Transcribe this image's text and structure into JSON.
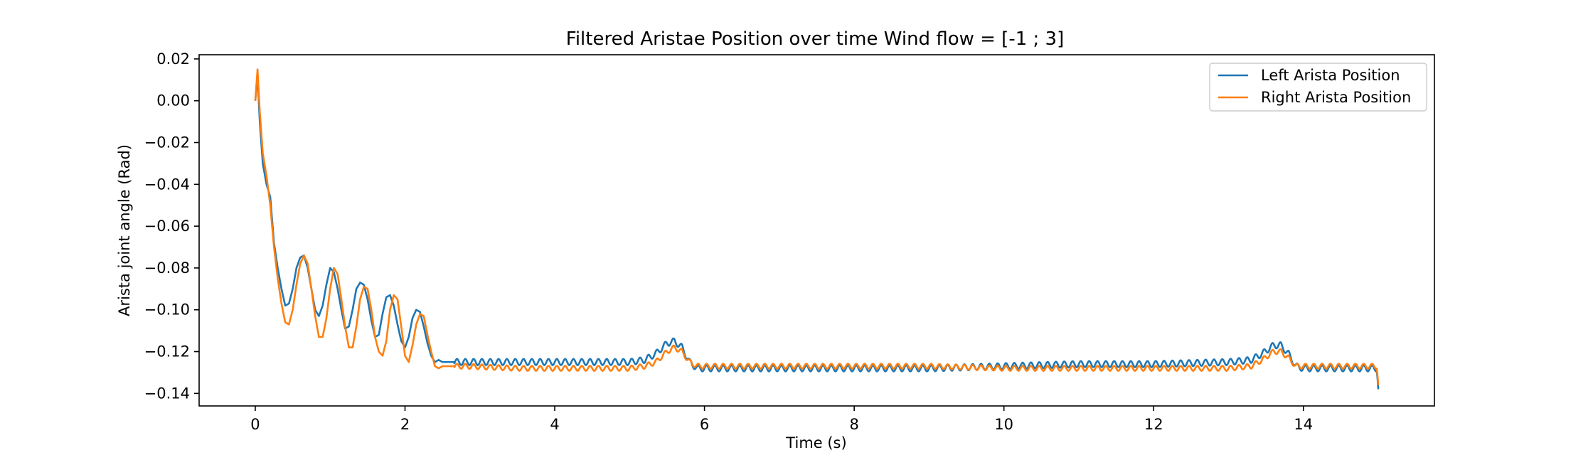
{
  "chart_data": {
    "type": "line",
    "title": "Filtered Aristae Position over time Wind flow = [-1 ; 3]",
    "xlabel": "Time (s)",
    "ylabel": "Arista joint angle (Rad)",
    "xlim": [
      -0.75,
      15.75
    ],
    "ylim": [
      -0.146,
      0.022
    ],
    "xticks": [
      0,
      2,
      4,
      6,
      8,
      10,
      12,
      14
    ],
    "xtick_labels": [
      "0",
      "2",
      "4",
      "6",
      "8",
      "10",
      "12",
      "14"
    ],
    "yticks": [
      0.02,
      0.0,
      -0.02,
      -0.04,
      -0.06,
      -0.08,
      -0.1,
      -0.12,
      -0.14
    ],
    "ytick_labels": [
      "0.02",
      "0.00",
      "−0.02",
      "−0.04",
      "−0.06",
      "−0.08",
      "−0.10",
      "−0.12",
      "−0.14"
    ],
    "grid": false,
    "legend_position": "top-right",
    "series": [
      {
        "name": "Left Arista Position",
        "color": "#1f77b4",
        "oscillation": {
          "start": 2.65,
          "end": 15.0,
          "frequency_hz": 9,
          "amplitude": 0.0015
        },
        "x": [
          0,
          0.03,
          0.06,
          0.1,
          0.15,
          0.2,
          0.25,
          0.3,
          0.35,
          0.4,
          0.45,
          0.5,
          0.55,
          0.6,
          0.65,
          0.7,
          0.75,
          0.8,
          0.85,
          0.9,
          0.95,
          1.0,
          1.05,
          1.1,
          1.15,
          1.2,
          1.25,
          1.3,
          1.35,
          1.4,
          1.45,
          1.5,
          1.55,
          1.6,
          1.65,
          1.7,
          1.75,
          1.8,
          1.85,
          1.9,
          1.95,
          2.0,
          2.05,
          2.1,
          2.15,
          2.2,
          2.25,
          2.3,
          2.35,
          2.4,
          2.45,
          2.5,
          2.55,
          2.6,
          2.65,
          2.7,
          2.8,
          3.5,
          4.5,
          5.0,
          5.2,
          5.35,
          5.5,
          5.6,
          5.7,
          5.8,
          5.9,
          6.0,
          7.0,
          8.0,
          9.0,
          10.0,
          11.0,
          12.0,
          13.0,
          13.3,
          13.45,
          13.6,
          13.7,
          13.8,
          13.9,
          14.0,
          14.5,
          14.98,
          15.0
        ],
        "y": [
          0.0,
          0.012,
          -0.01,
          -0.03,
          -0.04,
          -0.046,
          -0.068,
          -0.08,
          -0.09,
          -0.098,
          -0.097,
          -0.09,
          -0.08,
          -0.075,
          -0.074,
          -0.08,
          -0.09,
          -0.1,
          -0.103,
          -0.098,
          -0.088,
          -0.08,
          -0.082,
          -0.09,
          -0.1,
          -0.109,
          -0.108,
          -0.1,
          -0.09,
          -0.087,
          -0.088,
          -0.095,
          -0.105,
          -0.113,
          -0.112,
          -0.102,
          -0.094,
          -0.093,
          -0.098,
          -0.107,
          -0.115,
          -0.118,
          -0.113,
          -0.104,
          -0.1,
          -0.101,
          -0.108,
          -0.116,
          -0.122,
          -0.125,
          -0.124,
          -0.125,
          -0.125,
          -0.125,
          -0.125,
          -0.125,
          -0.125,
          -0.125,
          -0.125,
          -0.125,
          -0.124,
          -0.121,
          -0.116,
          -0.115,
          -0.118,
          -0.125,
          -0.128,
          -0.128,
          -0.128,
          -0.128,
          -0.128,
          -0.127,
          -0.126,
          -0.126,
          -0.125,
          -0.124,
          -0.121,
          -0.117,
          -0.117,
          -0.121,
          -0.127,
          -0.128,
          -0.128,
          -0.128,
          -0.138
        ]
      },
      {
        "name": "Right Arista Position",
        "color": "#ff7f0e",
        "oscillation": {
          "start": 2.65,
          "end": 15.0,
          "frequency_hz": 9,
          "amplitude": 0.0012
        },
        "x": [
          0,
          0.03,
          0.06,
          0.1,
          0.15,
          0.2,
          0.25,
          0.3,
          0.35,
          0.4,
          0.45,
          0.5,
          0.55,
          0.6,
          0.65,
          0.7,
          0.75,
          0.8,
          0.85,
          0.9,
          0.95,
          1.0,
          1.05,
          1.1,
          1.15,
          1.2,
          1.25,
          1.3,
          1.35,
          1.4,
          1.45,
          1.5,
          1.55,
          1.6,
          1.65,
          1.7,
          1.75,
          1.8,
          1.85,
          1.9,
          1.95,
          2.0,
          2.05,
          2.1,
          2.15,
          2.2,
          2.25,
          2.3,
          2.35,
          2.4,
          2.45,
          2.5,
          2.55,
          2.6,
          2.65,
          2.7,
          2.8,
          3.5,
          4.5,
          5.0,
          5.2,
          5.35,
          5.5,
          5.6,
          5.7,
          5.8,
          5.9,
          6.0,
          7.0,
          8.0,
          9.0,
          10.0,
          11.0,
          12.0,
          13.0,
          13.3,
          13.45,
          13.6,
          13.7,
          13.8,
          13.9,
          14.0,
          14.5,
          14.98,
          15.0
        ],
        "y": [
          0.0,
          0.015,
          -0.005,
          -0.025,
          -0.036,
          -0.05,
          -0.07,
          -0.085,
          -0.097,
          -0.106,
          -0.107,
          -0.1,
          -0.088,
          -0.078,
          -0.074,
          -0.078,
          -0.09,
          -0.103,
          -0.113,
          -0.113,
          -0.104,
          -0.09,
          -0.08,
          -0.083,
          -0.095,
          -0.108,
          -0.118,
          -0.118,
          -0.108,
          -0.095,
          -0.089,
          -0.09,
          -0.1,
          -0.113,
          -0.12,
          -0.122,
          -0.115,
          -0.1,
          -0.093,
          -0.095,
          -0.108,
          -0.122,
          -0.125,
          -0.117,
          -0.107,
          -0.102,
          -0.103,
          -0.112,
          -0.12,
          -0.127,
          -0.128,
          -0.127,
          -0.127,
          -0.127,
          -0.127,
          -0.127,
          -0.127,
          -0.128,
          -0.128,
          -0.128,
          -0.127,
          -0.125,
          -0.12,
          -0.118,
          -0.12,
          -0.125,
          -0.127,
          -0.127,
          -0.127,
          -0.127,
          -0.127,
          -0.128,
          -0.128,
          -0.128,
          -0.128,
          -0.127,
          -0.124,
          -0.12,
          -0.12,
          -0.123,
          -0.127,
          -0.127,
          -0.127,
          -0.127,
          -0.136
        ]
      }
    ]
  }
}
